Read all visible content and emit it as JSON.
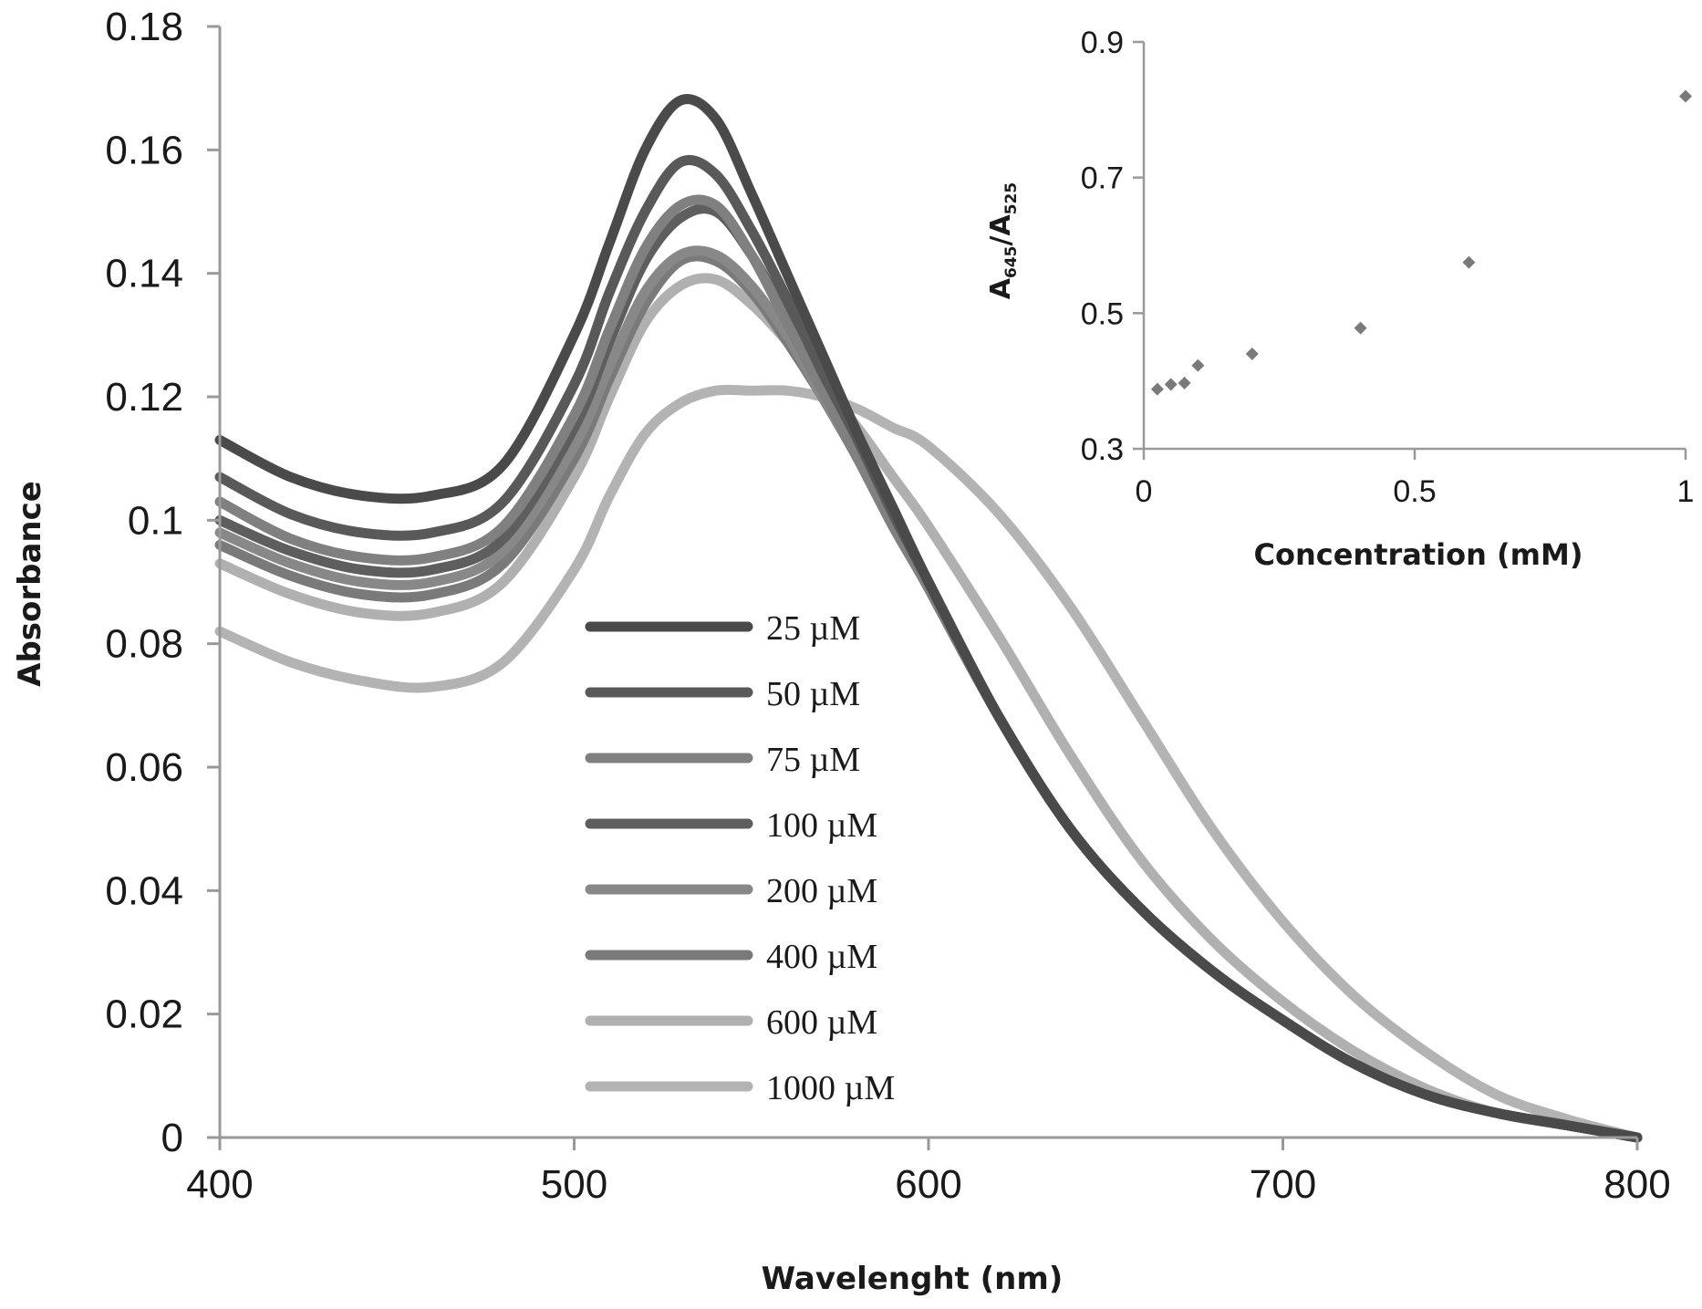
{
  "chart_data": [
    {
      "type": "line",
      "title": "",
      "xlabel": "Wavelenght (nm)",
      "ylabel": "Absorbance",
      "xlim": [
        400,
        800
      ],
      "ylim": [
        0,
        0.18
      ],
      "xticks": [
        "400",
        "500",
        "600",
        "700",
        "800"
      ],
      "yticks": [
        "0",
        "0.02",
        "0.04",
        "0.06",
        "0.08",
        "0.1",
        "0.12",
        "0.14",
        "0.16",
        "0.18"
      ],
      "grid": false,
      "legend_position": "center",
      "x": [
        400,
        420,
        440,
        460,
        480,
        500,
        510,
        520,
        530,
        540,
        550,
        560,
        570,
        580,
        590,
        600,
        620,
        640,
        660,
        680,
        700,
        720,
        740,
        760,
        780,
        800
      ],
      "series": [
        {
          "name": "25 µM",
          "color": "#4a4a4a",
          "values": [
            0.113,
            0.107,
            0.104,
            0.104,
            0.109,
            0.13,
            0.145,
            0.16,
            0.168,
            0.165,
            0.153,
            0.14,
            0.127,
            0.114,
            0.102,
            0.09,
            0.068,
            0.05,
            0.037,
            0.027,
            0.019,
            0.012,
            0.007,
            0.004,
            0.002,
            0.0
          ]
        },
        {
          "name": "50 µM",
          "color": "#595959",
          "values": [
            0.107,
            0.101,
            0.098,
            0.098,
            0.103,
            0.122,
            0.137,
            0.15,
            0.158,
            0.156,
            0.147,
            0.136,
            0.124,
            0.113,
            0.101,
            0.09,
            0.068,
            0.05,
            0.037,
            0.027,
            0.019,
            0.012,
            0.007,
            0.004,
            0.002,
            0.0
          ]
        },
        {
          "name": "75 µM",
          "color": "#808080",
          "values": [
            0.103,
            0.097,
            0.094,
            0.094,
            0.099,
            0.117,
            0.131,
            0.144,
            0.151,
            0.151,
            0.143,
            0.132,
            0.121,
            0.11,
            0.099,
            0.089,
            0.068,
            0.05,
            0.037,
            0.027,
            0.019,
            0.012,
            0.007,
            0.004,
            0.002,
            0.0
          ]
        },
        {
          "name": "100 µM",
          "color": "#5e5e5e",
          "values": [
            0.1,
            0.095,
            0.092,
            0.092,
            0.097,
            0.115,
            0.129,
            0.142,
            0.149,
            0.15,
            0.143,
            0.133,
            0.122,
            0.111,
            0.1,
            0.089,
            0.068,
            0.05,
            0.037,
            0.027,
            0.019,
            0.012,
            0.007,
            0.004,
            0.002,
            0.0
          ]
        },
        {
          "name": "200 µM",
          "color": "#888888",
          "values": [
            0.098,
            0.093,
            0.09,
            0.09,
            0.095,
            0.112,
            0.125,
            0.137,
            0.143,
            0.143,
            0.138,
            0.13,
            0.12,
            0.11,
            0.099,
            0.089,
            0.068,
            0.05,
            0.037,
            0.027,
            0.019,
            0.012,
            0.007,
            0.004,
            0.002,
            0.0
          ]
        },
        {
          "name": "400 µM",
          "color": "#7a7a7a",
          "values": [
            0.096,
            0.091,
            0.088,
            0.088,
            0.093,
            0.11,
            0.123,
            0.135,
            0.142,
            0.142,
            0.137,
            0.129,
            0.12,
            0.11,
            0.099,
            0.089,
            0.068,
            0.05,
            0.037,
            0.027,
            0.019,
            0.012,
            0.007,
            0.004,
            0.002,
            0.0
          ]
        },
        {
          "name": "600 µM",
          "color": "#b0b0b0",
          "values": [
            0.093,
            0.088,
            0.085,
            0.085,
            0.09,
            0.107,
            0.12,
            0.132,
            0.138,
            0.139,
            0.135,
            0.129,
            0.122,
            0.115,
            0.107,
            0.099,
            0.081,
            0.062,
            0.045,
            0.032,
            0.022,
            0.014,
            0.008,
            0.004,
            0.002,
            0.0
          ]
        },
        {
          "name": "1000 µM",
          "color": "#b3b3b3",
          "values": [
            0.082,
            0.077,
            0.074,
            0.073,
            0.077,
            0.092,
            0.104,
            0.114,
            0.119,
            0.121,
            0.121,
            0.121,
            0.12,
            0.118,
            0.115,
            0.112,
            0.101,
            0.086,
            0.068,
            0.05,
            0.035,
            0.023,
            0.014,
            0.007,
            0.003,
            0.0
          ]
        }
      ]
    },
    {
      "type": "scatter",
      "title": "",
      "xlabel": "Concentration (mM)",
      "ylabel_main": "A",
      "ylabel_sub1": "645",
      "ylabel_mid": "/A",
      "ylabel_sub2": "525",
      "xlim": [
        0,
        1
      ],
      "ylim": [
        0.3,
        0.9
      ],
      "xticks": [
        "0",
        "0.5",
        "1"
      ],
      "yticks": [
        "0.3",
        "0.5",
        "0.7",
        "0.9"
      ],
      "grid": false,
      "marker_color": "#7a7a7a",
      "x": [
        0.025,
        0.05,
        0.075,
        0.1,
        0.2,
        0.4,
        0.6,
        1.0
      ],
      "y": [
        0.388,
        0.395,
        0.397,
        0.423,
        0.44,
        0.478,
        0.575,
        0.82
      ]
    }
  ]
}
